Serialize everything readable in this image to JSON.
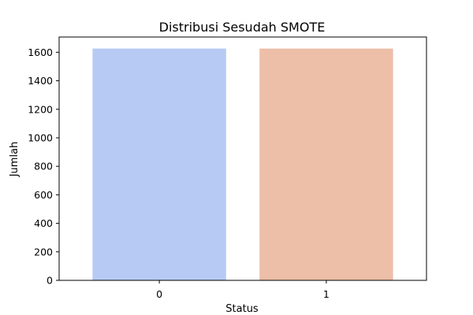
{
  "chart_data": {
    "type": "bar",
    "title": "Distribusi Sesudah SMOTE",
    "xlabel": "Status",
    "ylabel": "Jumlah",
    "categories": [
      "0",
      "1"
    ],
    "values": [
      1626,
      1626
    ],
    "bar_colors": [
      "#b6caf4",
      "#edbea8"
    ],
    "ylim": [
      0,
      1707
    ],
    "yticks": [
      0,
      200,
      400,
      600,
      800,
      1000,
      1200,
      1400,
      1600
    ],
    "grid": false,
    "legend": "none"
  }
}
